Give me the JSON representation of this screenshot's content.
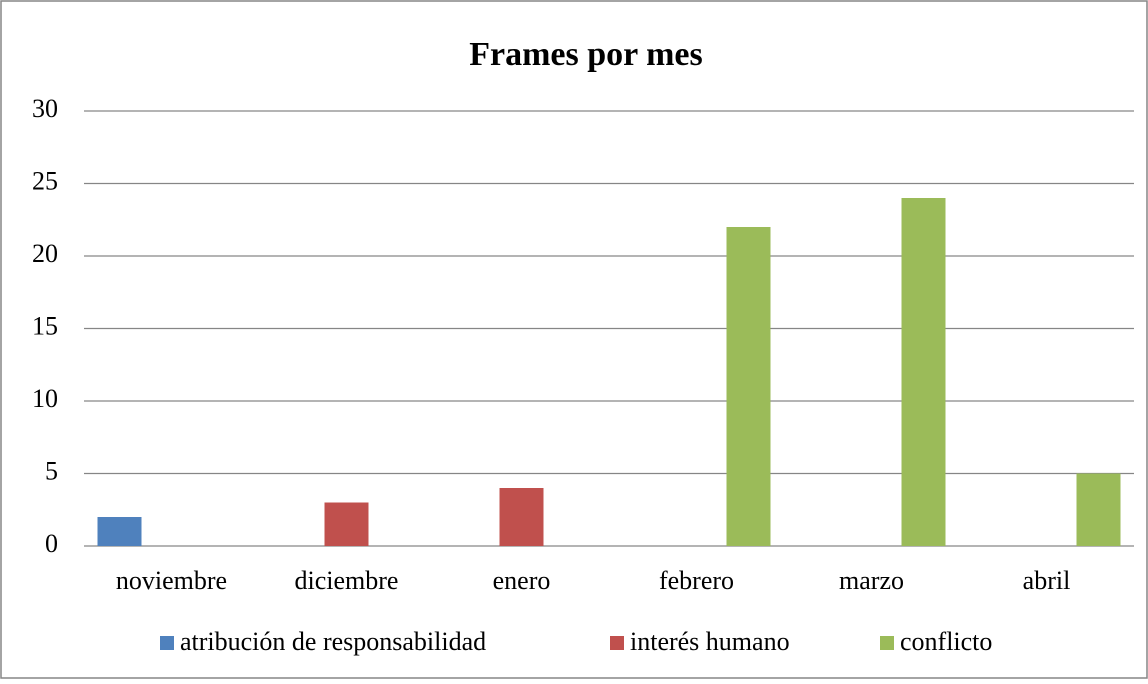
{
  "chart_data": {
    "type": "bar",
    "title": "Frames por mes",
    "categories": [
      "noviembre",
      "diciembre",
      "enero",
      "febrero",
      "marzo",
      "abril"
    ],
    "series": [
      {
        "name": "atribución de responsabilidad",
        "color": "#4f81bd",
        "values": [
          2,
          0,
          0,
          0,
          0,
          0
        ]
      },
      {
        "name": "interés humano",
        "color": "#c0504d",
        "values": [
          0,
          3,
          4,
          0,
          0,
          0
        ]
      },
      {
        "name": "conflicto",
        "color": "#9bbb59",
        "values": [
          0,
          0,
          0,
          22,
          24,
          5
        ]
      }
    ],
    "ylim": [
      0,
      30
    ],
    "yticks": [
      0,
      5,
      10,
      15,
      20,
      25,
      30
    ],
    "grid": true,
    "legend": "bottom"
  }
}
